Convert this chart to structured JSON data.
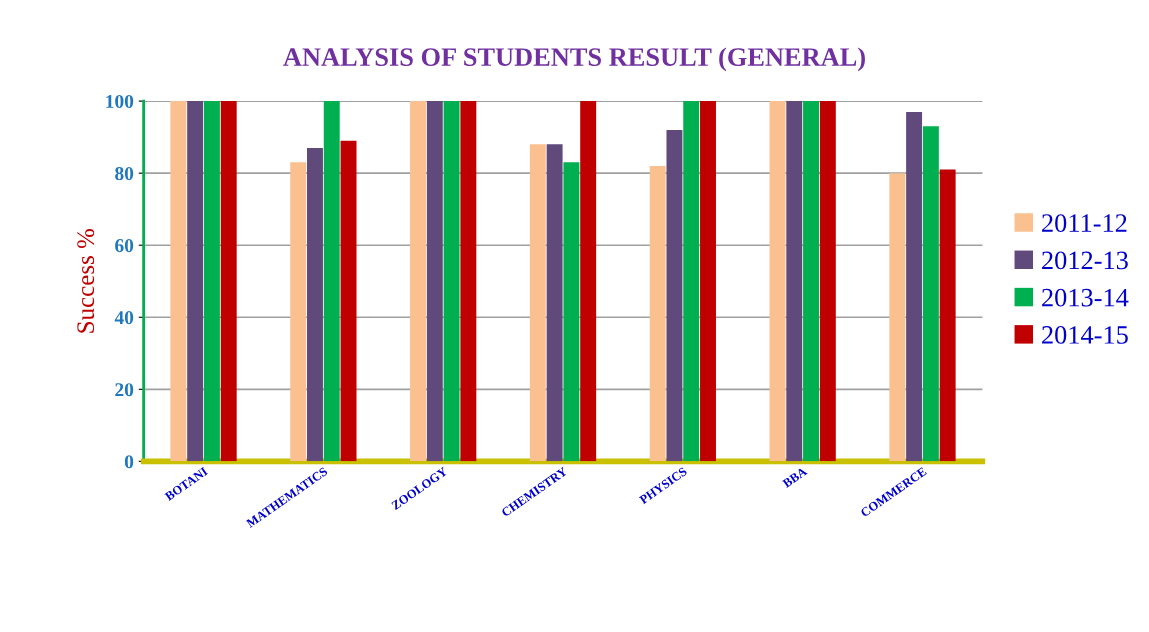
{
  "chart_data": {
    "type": "bar",
    "title": "ANALYSIS OF STUDENTS RESULT (GENERAL)",
    "ylabel": "Success %",
    "categories": [
      "BOTANI",
      "MATHEMATICS",
      "ZOOLOGY",
      "CHEMISTRY",
      "PHYSICS",
      "BBA",
      "COMMERCE"
    ],
    "series": [
      {
        "name": "2011-12",
        "color": "#fac090",
        "values": [
          100,
          83,
          100,
          88,
          82,
          100,
          80
        ]
      },
      {
        "name": "2012-13",
        "color": "#604a7b",
        "values": [
          100,
          87,
          100,
          88,
          92,
          100,
          97
        ]
      },
      {
        "name": "2013-14",
        "color": "#00b050",
        "values": [
          100,
          100,
          100,
          83,
          100,
          100,
          93
        ]
      },
      {
        "name": "2014-15",
        "color": "#c00000",
        "values": [
          100,
          89,
          100,
          100,
          100,
          100,
          81
        ]
      }
    ],
    "ylim": [
      0,
      100
    ],
    "yticks": [
      0,
      20,
      40,
      60,
      80,
      100
    ],
    "grid": "y",
    "legend": "right"
  }
}
